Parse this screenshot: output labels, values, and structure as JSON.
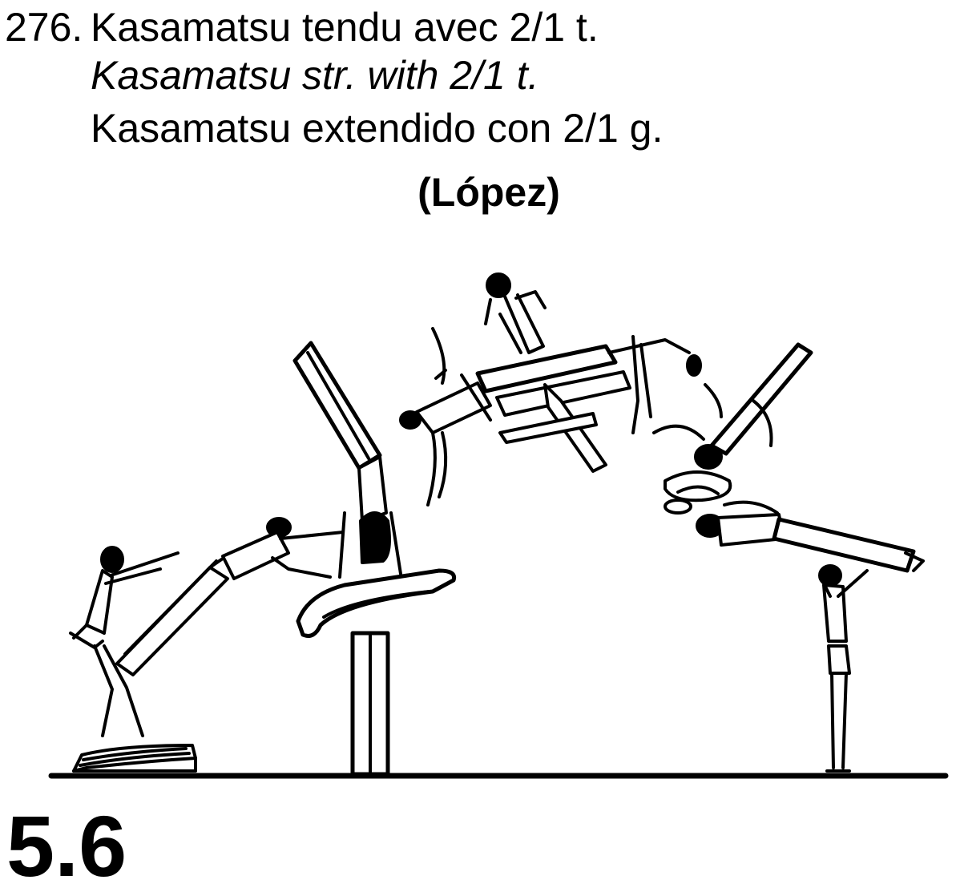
{
  "element": {
    "number": "276.",
    "name_fr": "Kasamatsu tendu avec 2/1 t.",
    "name_en": "Kasamatsu str. with 2/1 t.",
    "name_es": "Kasamatsu extendido con 2/1 g.",
    "gymnast": "(López)",
    "value": "5.6"
  }
}
